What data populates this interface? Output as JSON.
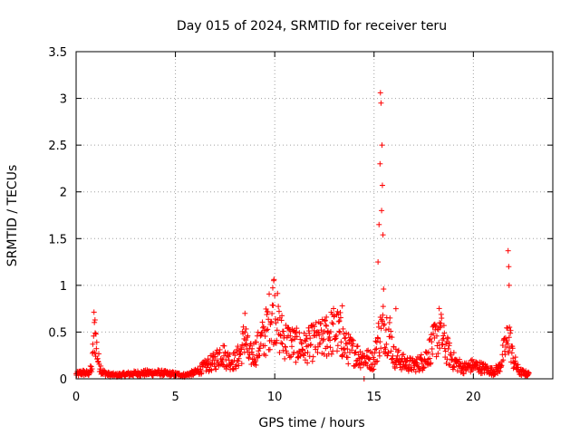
{
  "chart_data": {
    "type": "scatter",
    "title": "Day 015 of 2024, SRMTID for receiver teru",
    "xlabel": "GPS time / hours",
    "ylabel": "SRMTID / TECUs",
    "xlim": [
      0,
      24
    ],
    "ylim": [
      0,
      3.5
    ],
    "grid": true,
    "marker": "+",
    "color": "#ff0000",
    "x_ticks": [
      0,
      5,
      10,
      15,
      20
    ],
    "x_tick_labels": [
      "0",
      "5",
      "10",
      "15",
      "20"
    ],
    "y_ticks": [
      0,
      0.5,
      1,
      1.5,
      2,
      2.5,
      3,
      3.5
    ],
    "y_tick_labels": [
      "0",
      "0.5",
      "1",
      "1.5",
      "2",
      "2.5",
      "3",
      "3.5"
    ],
    "series": [
      {
        "name": "SRMTID",
        "profile": [
          [
            0.0,
            0.05
          ],
          [
            0.3,
            0.07
          ],
          [
            0.6,
            0.06
          ],
          [
            0.8,
            0.12
          ],
          [
            0.9,
            0.55
          ],
          [
            1.0,
            0.42
          ],
          [
            1.1,
            0.22
          ],
          [
            1.3,
            0.08
          ],
          [
            1.6,
            0.05
          ],
          [
            2.0,
            0.04
          ],
          [
            3.0,
            0.06
          ],
          [
            4.0,
            0.07
          ],
          [
            5.0,
            0.05
          ],
          [
            5.5,
            0.04
          ],
          [
            6.0,
            0.07
          ],
          [
            6.5,
            0.14
          ],
          [
            7.0,
            0.2
          ],
          [
            7.3,
            0.3
          ],
          [
            7.6,
            0.22
          ],
          [
            8.0,
            0.2
          ],
          [
            8.3,
            0.3
          ],
          [
            8.5,
            0.5
          ],
          [
            8.7,
            0.25
          ],
          [
            9.0,
            0.3
          ],
          [
            9.3,
            0.4
          ],
          [
            9.6,
            0.55
          ],
          [
            9.8,
            0.72
          ],
          [
            10.0,
            0.85
          ],
          [
            10.2,
            0.55
          ],
          [
            10.5,
            0.45
          ],
          [
            11.0,
            0.38
          ],
          [
            11.5,
            0.35
          ],
          [
            12.0,
            0.42
          ],
          [
            12.5,
            0.45
          ],
          [
            13.0,
            0.55
          ],
          [
            13.3,
            0.5
          ],
          [
            13.6,
            0.35
          ],
          [
            14.0,
            0.3
          ],
          [
            14.3,
            0.25
          ],
          [
            14.7,
            0.22
          ],
          [
            15.0,
            0.2
          ],
          [
            15.2,
            0.45
          ],
          [
            15.5,
            0.6
          ],
          [
            15.8,
            0.5
          ],
          [
            16.0,
            0.25
          ],
          [
            16.5,
            0.18
          ],
          [
            17.0,
            0.15
          ],
          [
            17.5,
            0.2
          ],
          [
            18.0,
            0.4
          ],
          [
            18.3,
            0.55
          ],
          [
            18.6,
            0.35
          ],
          [
            19.0,
            0.2
          ],
          [
            19.5,
            0.12
          ],
          [
            20.0,
            0.15
          ],
          [
            20.5,
            0.12
          ],
          [
            21.0,
            0.08
          ],
          [
            21.3,
            0.12
          ],
          [
            21.6,
            0.35
          ],
          [
            21.8,
            0.5
          ],
          [
            22.0,
            0.22
          ],
          [
            22.3,
            0.08
          ],
          [
            22.8,
            0.05
          ]
        ],
        "spikes": [
          [
            0.95,
            0.63
          ],
          [
            9.95,
            1.05
          ],
          [
            15.25,
            1.65
          ],
          [
            15.3,
            2.3
          ],
          [
            15.32,
            3.06
          ],
          [
            15.35,
            2.95
          ],
          [
            15.4,
            2.5
          ],
          [
            15.42,
            2.07
          ],
          [
            15.45,
            1.54
          ],
          [
            15.48,
            0.96
          ],
          [
            15.2,
            1.25
          ],
          [
            15.38,
            1.8
          ],
          [
            21.75,
            1.37
          ],
          [
            21.78,
            1.2
          ],
          [
            21.8,
            1.0
          ],
          [
            18.3,
            0.6
          ],
          [
            13.4,
            0.78
          ],
          [
            8.5,
            0.7
          ],
          [
            12.6,
            0.66
          ],
          [
            14.5,
            0.0
          ],
          [
            16.1,
            0.75
          ]
        ]
      }
    ]
  }
}
